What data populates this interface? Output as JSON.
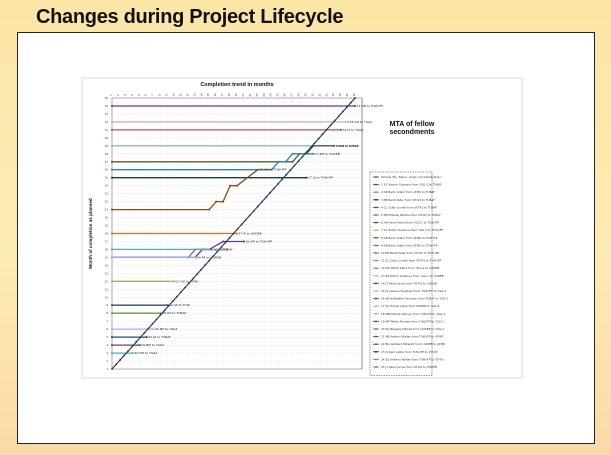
{
  "slide": {
    "title": "Changes during Project Lifecycle"
  },
  "chart_data": {
    "type": "line",
    "title": "Completion trend in months",
    "ylabel": "Month of completion as planned",
    "xlabel": "",
    "mta_title": "MTA of fellow secondments",
    "x_ticks": [
      "1",
      "2",
      "3",
      "4",
      "5",
      "6",
      "7",
      "8",
      "9",
      "10",
      "11",
      "12",
      "13",
      "14",
      "15",
      "16",
      "17",
      "18",
      "19",
      "20",
      "21",
      "22",
      "23",
      "24",
      "25",
      "26",
      "27",
      "28",
      "29",
      "30",
      "31",
      "32",
      "33",
      "34",
      "35",
      "36"
    ],
    "y_ticks": [
      "1",
      "2",
      "3",
      "4",
      "5",
      "6",
      "7",
      "8",
      "9",
      "10",
      "11",
      "12",
      "13",
      "14",
      "15",
      "16",
      "17",
      "18",
      "19",
      "20",
      "21",
      "22",
      "23",
      "24",
      "25",
      "26",
      "27",
      "28",
      "29",
      "30",
      "31",
      "32",
      "33",
      "34",
      "35"
    ],
    "xlim": [
      1,
      37
    ],
    "ylim": [
      1,
      35
    ],
    "grid": true,
    "legend_position": "right",
    "series": [
      {
        "label": "12 DB to TUW-IFP",
        "color": "#7030a0",
        "x": [
          1,
          36
        ],
        "y": [
          34,
          34
        ]
      },
      {
        "label": "34 GH to YGG2",
        "color": "#e6a1a1",
        "x": [
          1,
          35
        ],
        "y": [
          32,
          32
        ]
      },
      {
        "label": "33 JT to YGG2",
        "color": "#c0504d",
        "x": [
          1,
          34
        ],
        "y": [
          31,
          31
        ]
      },
      {
        "label": "40 LB to VIT-R3",
        "color": "#95b3d7",
        "x": [
          1,
          33
        ],
        "y": [
          29,
          29
        ]
      },
      {
        "label": "7 MM to TUBAF",
        "color": "#4f6228",
        "x": [
          1,
          27,
          28,
          29,
          30,
          33
        ],
        "y": [
          27,
          27,
          28,
          28,
          29,
          29
        ]
      },
      {
        "label": "13 PM to UODEB",
        "color": "#31859c",
        "x": [
          1,
          24,
          25,
          26,
          27,
          30
        ],
        "y": [
          26,
          26,
          27,
          27,
          28,
          28
        ]
      },
      {
        "label": "17 CJ to TUW-IFP",
        "color": "#17375e",
        "x": [
          1,
          29
        ],
        "y": [
          25,
          25
        ]
      },
      {
        "label": "15 AM to TUW-IFP",
        "color": "#984806",
        "x": [
          1,
          15,
          16,
          17,
          18,
          19,
          22
        ],
        "y": [
          21,
          21,
          22,
          22,
          24,
          24,
          26
        ]
      },
      {
        "label": "27 IF to UODEB",
        "color": "#e46c0a",
        "x": [
          1,
          19
        ],
        "y": [
          18,
          18
        ]
      },
      {
        "label": "16 AM to TUW-IFP",
        "color": "#7030a0",
        "x": [
          1,
          13,
          14,
          15,
          17,
          20
        ],
        "y": [
          15,
          15,
          16,
          16,
          17,
          17
        ]
      },
      {
        "label": "18 SB to UODEB",
        "color": "#8064a2",
        "x": [
          1,
          12,
          13,
          14
        ],
        "y": [
          15,
          15,
          16,
          16
        ]
      },
      {
        "label": "2 SG to TUBAF",
        "color": "#4bacc6",
        "x": [
          1,
          15
        ],
        "y": [
          16,
          16
        ]
      },
      {
        "label": "24 RF to UODEB",
        "color": "#8eb4e3",
        "x": [
          1,
          13
        ],
        "y": [
          15,
          15
        ]
      },
      {
        "label": "17 AZ to ATMO",
        "color": "#9bbb59",
        "x": [
          1,
          10
        ],
        "y": [
          12,
          12
        ]
      },
      {
        "label": "42 AS to TUW",
        "color": "#2c4d75",
        "x": [
          1,
          9
        ],
        "y": [
          9,
          9
        ]
      },
      {
        "label": "28 GH to TUBAF",
        "color": "#77933c",
        "x": [
          1,
          8
        ],
        "y": [
          8,
          8
        ]
      },
      {
        "label": "20 NP to YGG2",
        "color": "#cc99ff",
        "x": [
          1,
          7
        ],
        "y": [
          6,
          6
        ]
      },
      {
        "label": "32 JO to TUBAF",
        "color": "#1f497d",
        "x": [
          1,
          6
        ],
        "y": [
          5,
          5
        ]
      },
      {
        "label": "39 NM to YGG2",
        "color": "#60497a",
        "x": [
          1,
          5
        ],
        "y": [
          4,
          4
        ]
      },
      {
        "label": "30 MH to YGG2",
        "color": "#4bacc6",
        "x": [
          1,
          4
        ],
        "y": [
          3,
          3
        ]
      },
      {
        "label": "diagonal",
        "color": "#17375e",
        "x": [
          1,
          36
        ],
        "y": [
          1,
          35
        ]
      }
    ],
    "legend": [
      "Fellows (No, Name, Origin and Destination)",
      "1 SS Steiner Susanne from YGG-2 to TUBAF",
      "2 AB Barto Adam from ATMO to TUBAF",
      "3 PB Bardt Peter from VIT-R3 to TUBAF",
      "4 CL Colbo Lindell from VIT-R3 to TUBAF",
      "5 MM Mikolaj Mikaila from VIT-R3 to TUBAF",
      "6 AN Adriel Astrid from YGG-1 to TUW-IFP",
      "7 SS Rahmi Suzanne from YGG-1 to TUW-IFP",
      "8 AB Barto Adam from ATMO to TUW-IFP",
      "9 AB Barto Adam from ATMO to TUW-IFP",
      "10 PB Bardt Peter from VIT-R3 to TUW-IFP",
      "11 CL Colbo Lindell from VIT-R3 to TUW-IFP",
      "12 PW Werth Petra from YGG-2 to UODEB",
      "13 RS Rahmi Suzanne from YGG-1 to UODEB",
      "14 JT Kalan Janos from VIT-R3 to UODEB",
      "15 JS Jussoen Siegfried from TUW-IFP to YGG-1",
      "16 AB Hellwater Hermann from TUBAF to YGG-1",
      "17 TA Tomski Jakob from UODEB to YGG-1",
      "18 MM Mikolai Werner from TUW-IFP to YGG-1",
      "19 NP Pfeifer Norbert from TUW-IFP to YGG-2",
      "20 SK Bergelly Mikhail from UODEB to YGG-2",
      "21 NB Kellerin Walter from TUW-IFP to ATMO",
      "22 BG Gellberd Mikalett from UODEB to ATMO",
      "23 JS Sam Lotter from TUW-IFP to VIT-R3",
      "24 SG Kellerin Walter from TUW-IFP to VIT-R3",
      "25 JT Kalan Janos from VIT-R3 to UODEB"
    ]
  }
}
